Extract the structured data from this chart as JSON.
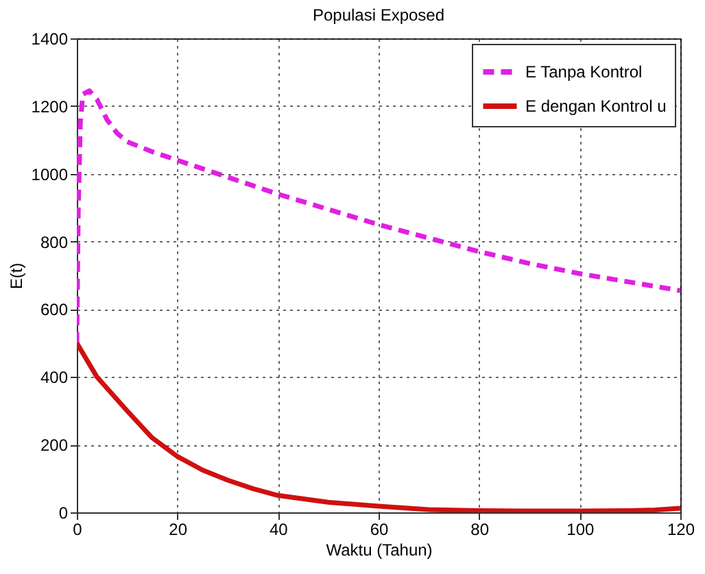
{
  "chart_data": {
    "type": "line",
    "title": "Populasi Exposed",
    "xlabel": "Waktu (Tahun)",
    "ylabel": "E(t)",
    "xlim": [
      0,
      120
    ],
    "ylim": [
      0,
      1400
    ],
    "xticks": [
      0,
      20,
      40,
      60,
      80,
      100,
      120
    ],
    "yticks": [
      0,
      200,
      400,
      600,
      800,
      1000,
      1200,
      1400
    ],
    "grid": true,
    "legend": "top right",
    "series": [
      {
        "name": "E Tanpa Kontrol",
        "color": "#e020e0",
        "line_style": "dashed",
        "x": [
          0,
          0.3,
          0.7,
          1.2,
          2.5,
          4,
          6,
          8,
          10,
          15,
          20,
          30,
          40,
          50,
          60,
          70,
          80,
          90,
          100,
          110,
          120
        ],
        "values": [
          500,
          900,
          1150,
          1235,
          1245,
          1220,
          1160,
          1120,
          1095,
          1065,
          1040,
          990,
          940,
          895,
          850,
          810,
          770,
          735,
          705,
          680,
          655
        ]
      },
      {
        "name": "E dengan Kontrol u",
        "color": "#d01010",
        "line_style": "solid",
        "x": [
          0,
          4,
          10,
          15,
          20,
          25,
          30,
          35,
          40,
          50,
          60,
          70,
          80,
          90,
          100,
          110,
          115,
          120
        ],
        "values": [
          500,
          400,
          300,
          220,
          165,
          125,
          95,
          70,
          50,
          30,
          18,
          8,
          5,
          4,
          4,
          5,
          7,
          12
        ]
      }
    ]
  }
}
